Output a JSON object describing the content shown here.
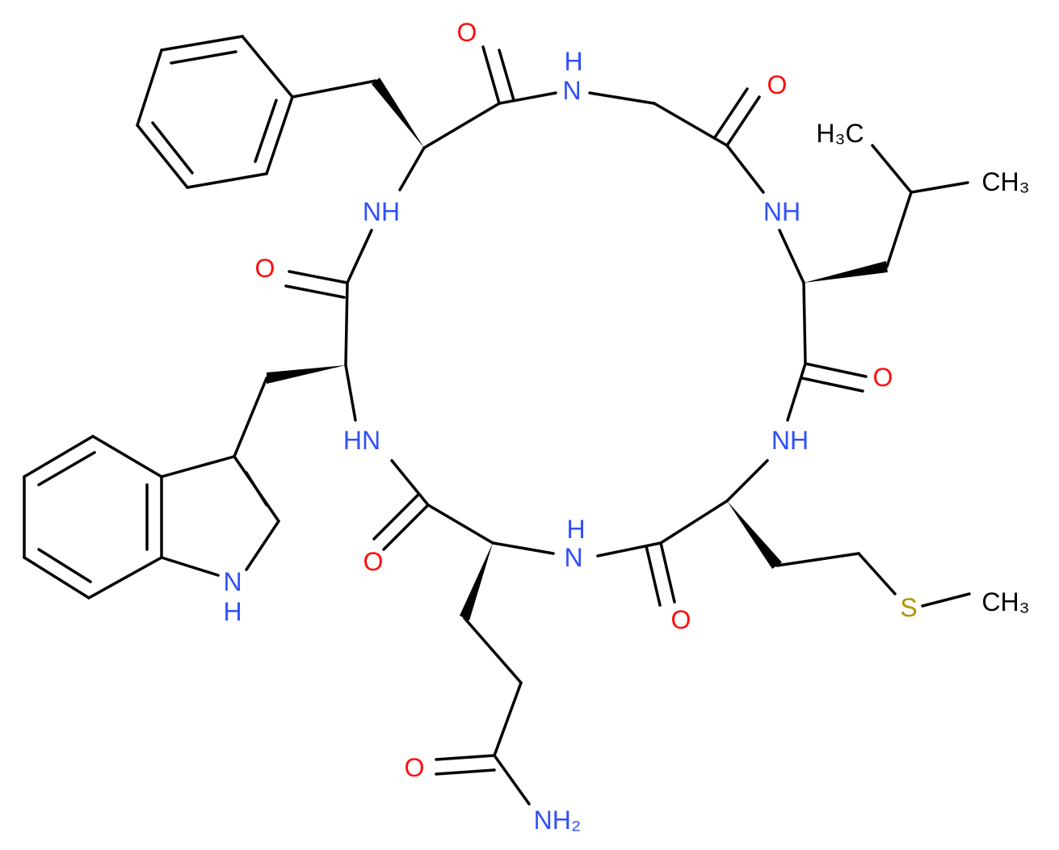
{
  "atoms": [
    {
      "label": "O"
    },
    {
      "label": "H"
    },
    {
      "label": "N"
    },
    {
      "label": "O"
    },
    {
      "label": "H₃C"
    },
    {
      "label": "CH₃"
    },
    {
      "label": "NH"
    },
    {
      "label": "O"
    },
    {
      "label": "NH"
    },
    {
      "label": "O"
    },
    {
      "label": "HN"
    },
    {
      "label": "NH"
    },
    {
      "label": "H"
    },
    {
      "label": "N"
    },
    {
      "label": "O"
    },
    {
      "label": "O"
    },
    {
      "label": "S"
    },
    {
      "label": "CH₃"
    },
    {
      "label": "N"
    },
    {
      "label": "H"
    },
    {
      "label": "O"
    },
    {
      "label": "NH₂"
    }
  ]
}
